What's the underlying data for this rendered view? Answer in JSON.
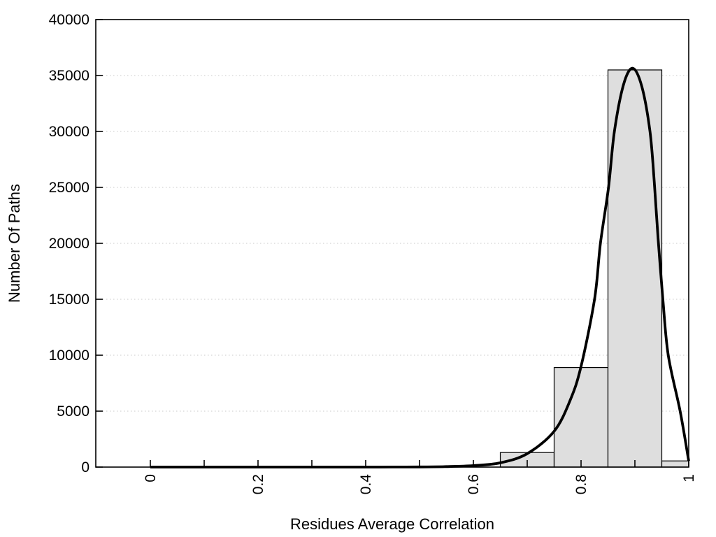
{
  "figure": {
    "background": "#ffffff",
    "frame_color": "#000000",
    "grid_color": "#c8c8c8",
    "bar_fill": "#dedede",
    "bar_stroke": "#000000",
    "curve_color": "#000000"
  },
  "chart_data": {
    "type": "bar",
    "subtype": "histogram-with-fit-curve",
    "title": "",
    "xlabel": "Residues Average Correlation",
    "ylabel": "Number Of Paths",
    "xlim": [
      -0.1013,
      1.0
    ],
    "ylim": [
      0,
      40000
    ],
    "grid": "horizontal-dotted",
    "legend": "none",
    "x_axis": {
      "minor_tick_values": [
        0,
        0.1,
        0.2,
        0.3,
        0.4,
        0.5,
        0.6,
        0.7,
        0.8,
        0.9,
        1.0
      ],
      "labeled_tick_values": [
        0,
        0.2,
        0.4,
        0.6,
        0.8,
        1.0
      ],
      "labeled_tick_labels": [
        "0",
        "0.2",
        "0.4",
        "0.6",
        "0.8",
        "1"
      ],
      "label_rotation_deg": -90
    },
    "y_axis": {
      "tick_values": [
        0,
        5000,
        10000,
        15000,
        20000,
        25000,
        30000,
        35000,
        40000
      ],
      "tick_labels": [
        "0",
        "5000",
        "10000",
        "15000",
        "20000",
        "25000",
        "30000",
        "35000",
        "40000"
      ],
      "gridline_values": [
        5000,
        10000,
        15000,
        20000,
        25000,
        30000,
        35000
      ]
    },
    "bars": [
      {
        "range": [
          0.65,
          0.75
        ],
        "count": 1300
      },
      {
        "range": [
          0.75,
          0.85
        ],
        "count": 8900
      },
      {
        "range": [
          0.85,
          0.95
        ],
        "count": 35500
      },
      {
        "range": [
          0.95,
          1.0
        ],
        "count": 550
      }
    ],
    "fit_curve": [
      [
        0.0,
        0
      ],
      [
        0.05,
        0
      ],
      [
        0.1,
        0
      ],
      [
        0.15,
        0
      ],
      [
        0.2,
        0
      ],
      [
        0.25,
        0
      ],
      [
        0.3,
        0
      ],
      [
        0.35,
        0
      ],
      [
        0.4,
        0
      ],
      [
        0.45,
        5
      ],
      [
        0.5,
        15
      ],
      [
        0.55,
        45
      ],
      [
        0.6,
        130
      ],
      [
        0.65,
        380
      ],
      [
        0.7,
        1200
      ],
      [
        0.75,
        3200
      ],
      [
        0.78,
        6000
      ],
      [
        0.8,
        9000
      ],
      [
        0.825,
        15000
      ],
      [
        0.836,
        20000
      ],
      [
        0.851,
        25000
      ],
      [
        0.862,
        30000
      ],
      [
        0.879,
        34200
      ],
      [
        0.896,
        35650
      ],
      [
        0.913,
        34000
      ],
      [
        0.928,
        30000
      ],
      [
        0.936,
        25500
      ],
      [
        0.943,
        20500
      ],
      [
        0.952,
        15000
      ],
      [
        0.962,
        10000
      ],
      [
        0.984,
        5000
      ],
      [
        1.0,
        550
      ]
    ]
  }
}
